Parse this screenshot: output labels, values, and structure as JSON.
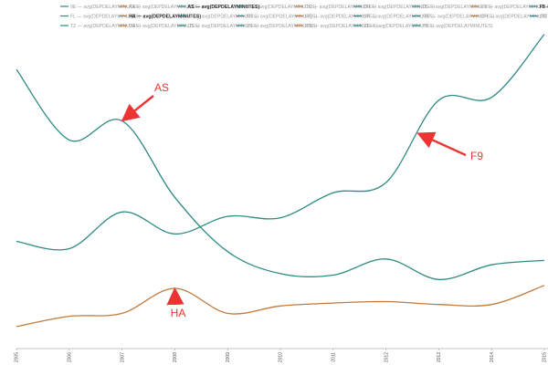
{
  "chart_data": {
    "type": "line",
    "title": "",
    "xlabel": "",
    "ylabel": "",
    "x": [
      "2005",
      "2006",
      "2007",
      "2008",
      "2009",
      "2010",
      "2011",
      "2012",
      "2013",
      "2014",
      "2015"
    ],
    "ylim": [
      0,
      20
    ],
    "grid": false,
    "legend_position": "top",
    "legend": [
      {
        "label": "9E — avg(DEPDELAYMINUTES)",
        "highlight": false
      },
      {
        "label": "AA — avg(DEPDELAYMINUTES)",
        "highlight": false
      },
      {
        "label": "AS — avg(DEPDELAYMINUTES)",
        "highlight": true
      },
      {
        "label": "B6 — avg(DEPDELAYMINUTES)",
        "highlight": false
      },
      {
        "label": "CO — avg(DEPDELAYMINUTES)",
        "highlight": false
      },
      {
        "label": "DH — avg(DEPDELAYMINUTES)",
        "highlight": false
      },
      {
        "label": "DL — avg(DEPDELAYMINUTES)",
        "highlight": false
      },
      {
        "label": "EV — avg(DEPDELAYMINUTES)",
        "highlight": false
      },
      {
        "label": "F9 — avg(DEPDELAYMINUTES)",
        "highlight": true
      },
      {
        "label": "FL — avg(DEPDELAYMINUTES)",
        "highlight": false
      },
      {
        "label": "HA — avg(DEPDELAYMINUTES)",
        "highlight": true
      },
      {
        "label": "HP — avg(DEPDELAYMINUTES)",
        "highlight": false
      },
      {
        "label": "KH — avg(DEPDELAYMINUTES)",
        "highlight": false
      },
      {
        "label": "MQ — avg(DEPDELAYMINUTES)",
        "highlight": false
      },
      {
        "label": "NK — avg(DEPDELAYMINUTES)",
        "highlight": false
      },
      {
        "label": "NW — avg(DEPDELAYMINUTES)",
        "highlight": false
      },
      {
        "label": "OH — avg(DEPDELAYMINUTES)",
        "highlight": false
      },
      {
        "label": "OO — avg(DEPDELAYMINUTES)",
        "highlight": false
      },
      {
        "label": "TZ — avg(DEPDELAYMINUTES)",
        "highlight": false
      },
      {
        "label": "UA — avg(DEPDELAYMINUTES)",
        "highlight": false
      },
      {
        "label": "US — avg(DEPDELAYMINUTES)",
        "highlight": false
      },
      {
        "label": "VX — avg(DEPDELAYMINUTES)",
        "highlight": false
      },
      {
        "label": "WN — avg(DEPDELAYMINUTES)",
        "highlight": false
      },
      {
        "label": "XE — avg(DEPDELAYMINUTES)",
        "highlight": false
      },
      {
        "label": "YV — avg(DEPDELAYMINUTES)",
        "highlight": false
      }
    ],
    "series": [
      {
        "key": "AS",
        "color": "#2e8a83",
        "values": [
          19.0,
          14.2,
          15.5,
          10.3,
          6.6,
          5.1,
          5.0,
          6.1,
          4.7,
          5.7,
          6.0
        ]
      },
      {
        "key": "F9",
        "color": "#2e8a83",
        "values": [
          7.3,
          6.8,
          9.3,
          7.8,
          9.0,
          8.9,
          10.6,
          11.3,
          16.9,
          17.1,
          21.4
        ]
      },
      {
        "key": "HA",
        "color": "#c07a3d",
        "values": [
          1.5,
          2.2,
          2.4,
          4.1,
          2.4,
          2.9,
          3.1,
          3.2,
          3.0,
          3.0,
          4.3
        ]
      }
    ],
    "annotations": [
      {
        "text": "AS",
        "color": "#ee3333"
      },
      {
        "text": "F9",
        "color": "#ee3333"
      },
      {
        "text": "HA",
        "color": "#ee3333"
      }
    ]
  }
}
